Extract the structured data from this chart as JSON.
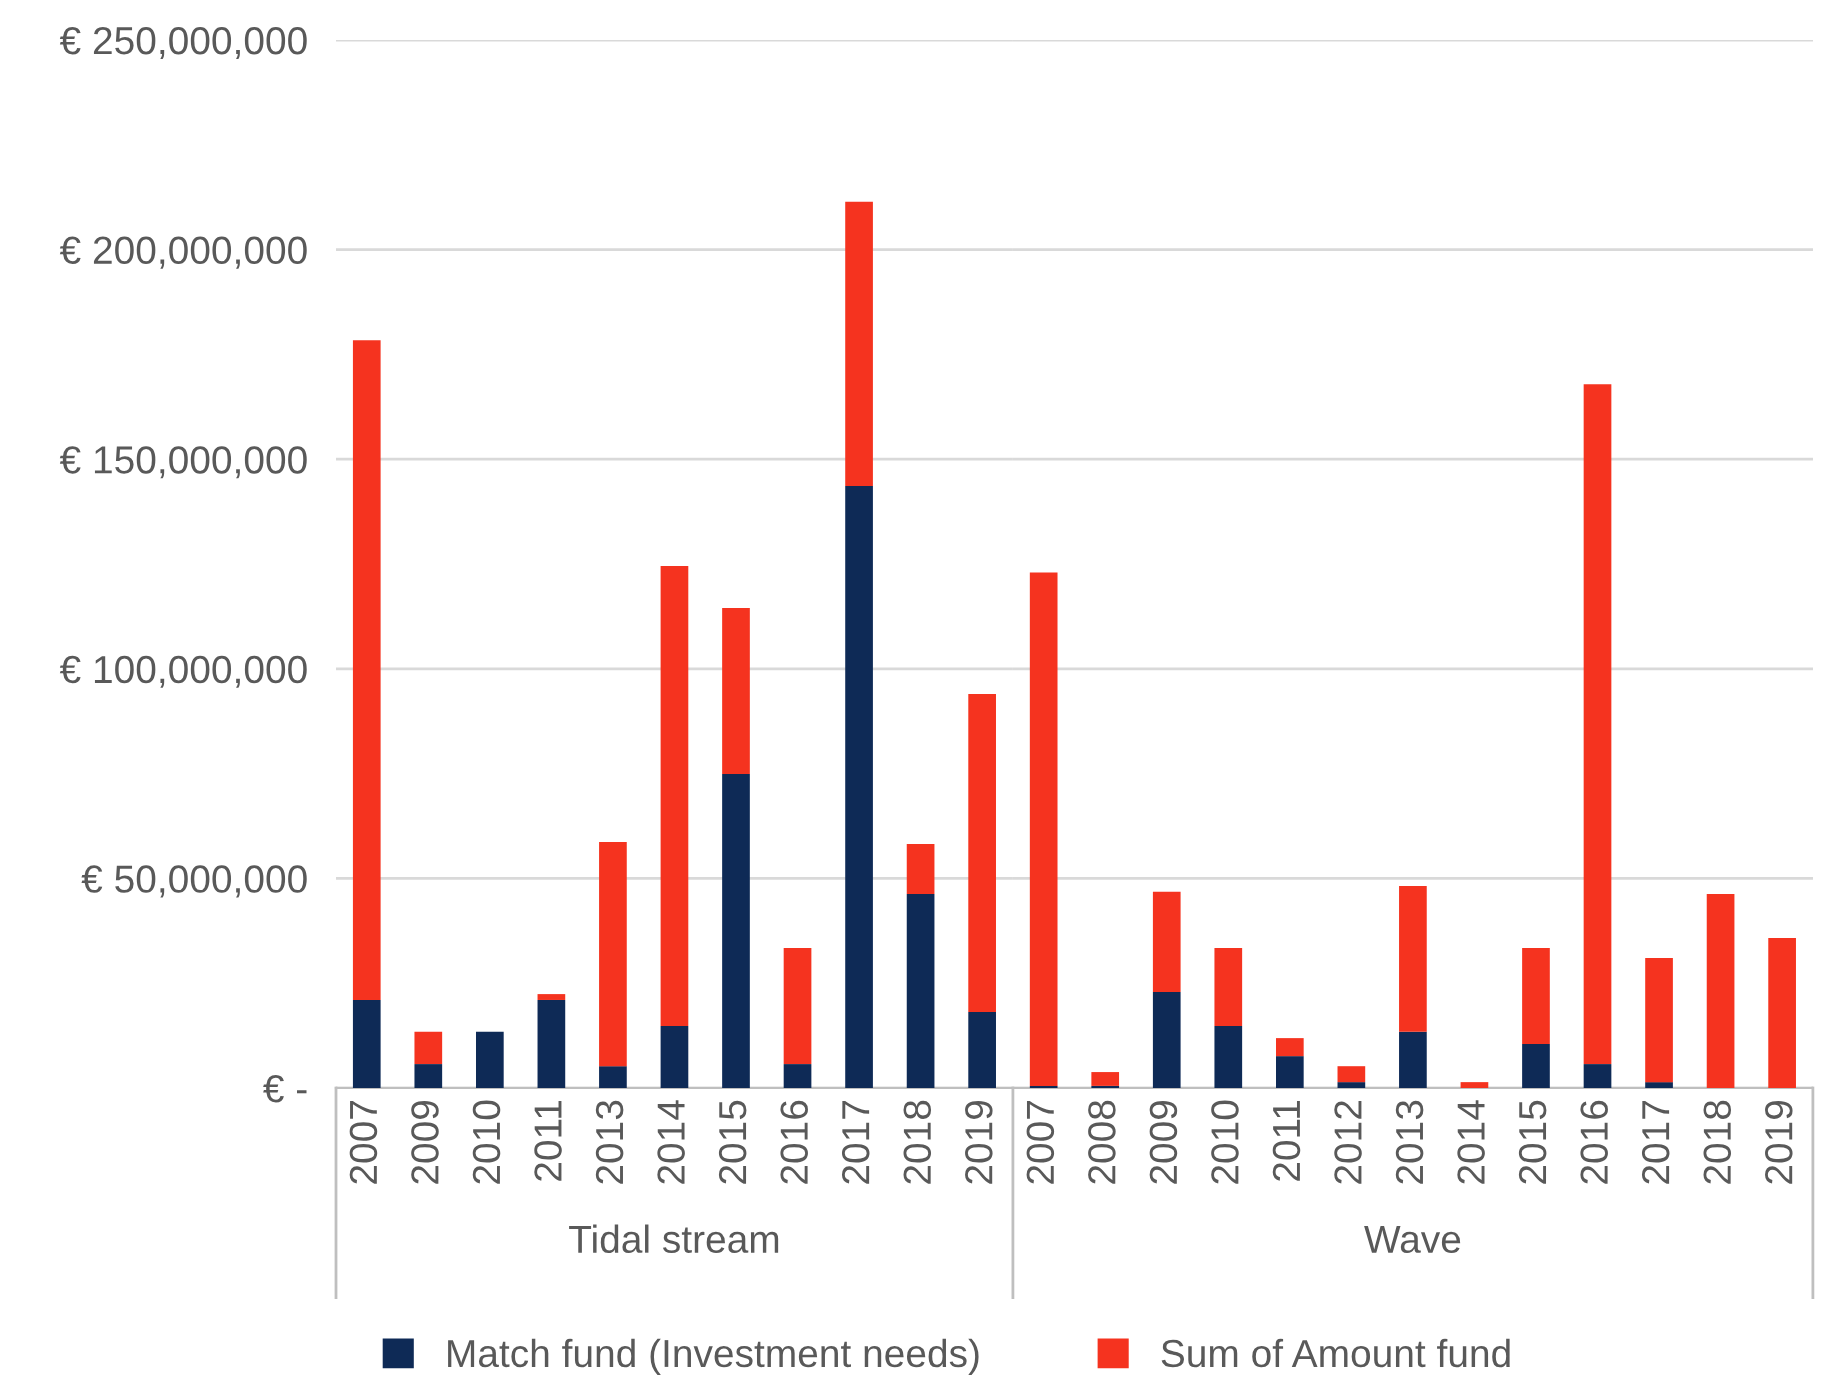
{
  "chart_data": [
    {
      "type": "bar",
      "stacked": true,
      "xlabel": "Tidal stream",
      "categories": [
        "2007",
        "2009",
        "2010",
        "2011",
        "2013",
        "2014",
        "2015",
        "2016",
        "2017",
        "2018",
        "2019"
      ],
      "series": [
        {
          "name": "Match fund (Investment needs)",
          "color": "#0e2a56",
          "values": [
            21000000,
            5700000,
            13400000,
            21000000,
            5200000,
            14800000,
            74900000,
            5700000,
            143600000,
            46300000,
            18100000
          ]
        },
        {
          "name": "Sum of Amount fund",
          "color": "#f5331f",
          "values": [
            157400000,
            7700000,
            0,
            1400000,
            53500000,
            109700000,
            39600000,
            27700000,
            67800000,
            11900000,
            75900000
          ]
        }
      ],
      "ylim": [
        0,
        250000000
      ],
      "yticks": [
        {
          "value": 0,
          "label": "€ -"
        },
        {
          "value": 50000000,
          "label": "€ 50,000,000"
        },
        {
          "value": 100000000,
          "label": "€ 100,000,000"
        },
        {
          "value": 150000000,
          "label": "€ 150,000,000"
        },
        {
          "value": 200000000,
          "label": "€ 200,000,000"
        },
        {
          "value": 250000000,
          "label": "€ 250,000,000"
        }
      ],
      "grid": "y",
      "legend": "bottom"
    },
    {
      "type": "bar",
      "stacked": true,
      "xlabel": "Wave",
      "categories": [
        "2007",
        "2008",
        "2009",
        "2010",
        "2011",
        "2012",
        "2013",
        "2014",
        "2015",
        "2016",
        "2017",
        "2018",
        "2019"
      ],
      "series": [
        {
          "color": "#0e2a56",
          "values": [
            500000,
            500000,
            22900000,
            14800000,
            7600000,
            1400000,
            13400000,
            0,
            10500000,
            5700000,
            1400000,
            0,
            0
          ]
        },
        {
          "color": "#f5331f",
          "values": [
            122500000,
            3300000,
            23900000,
            18600000,
            4300000,
            3800000,
            34800000,
            1400000,
            22900000,
            162200000,
            29600000,
            46300000,
            35800000
          ]
        }
      ],
      "ylim": [
        0,
        250000000
      ],
      "yticks": [
        {
          "value": 0,
          "label": null
        },
        {
          "value": 50000000,
          "label": null
        },
        {
          "value": 100000000,
          "label": null
        },
        {
          "value": 150000000,
          "label": null
        },
        {
          "value": 200000000,
          "label": null
        },
        {
          "value": 250000000,
          "label": null
        }
      ],
      "grid": "y",
      "tick_labels": "x"
    }
  ]
}
